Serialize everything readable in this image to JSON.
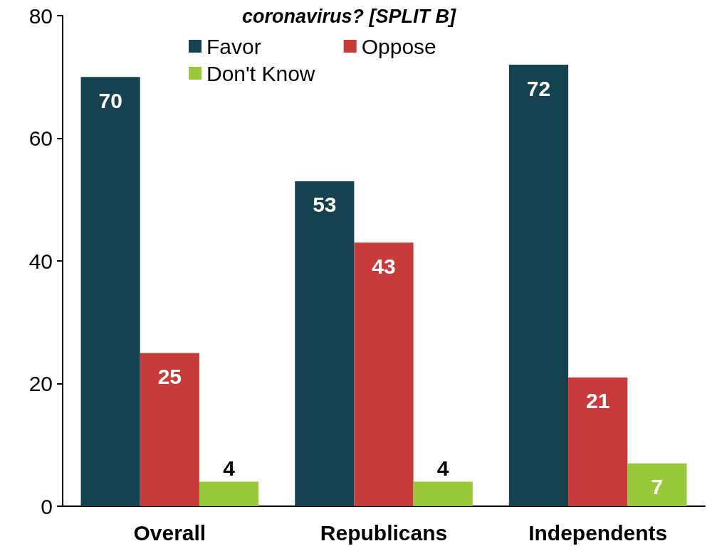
{
  "chart_data": {
    "type": "bar",
    "title": "coronavirus? [SPLIT B]",
    "categories": [
      "Overall",
      "Republicans",
      "Independents"
    ],
    "series": [
      {
        "name": "Favor",
        "color": "#15424f",
        "values": [
          70,
          53,
          72
        ]
      },
      {
        "name": "Oppose",
        "color": "#c83b3b",
        "values": [
          25,
          43,
          21
        ]
      },
      {
        "name": "Don't Know",
        "color": "#99c93a",
        "values": [
          4,
          4,
          7
        ]
      }
    ],
    "ylim": [
      0,
      80
    ],
    "yticks": [
      0,
      20,
      40,
      60,
      80
    ],
    "grid": false,
    "legend": "top",
    "data_labels": true
  }
}
